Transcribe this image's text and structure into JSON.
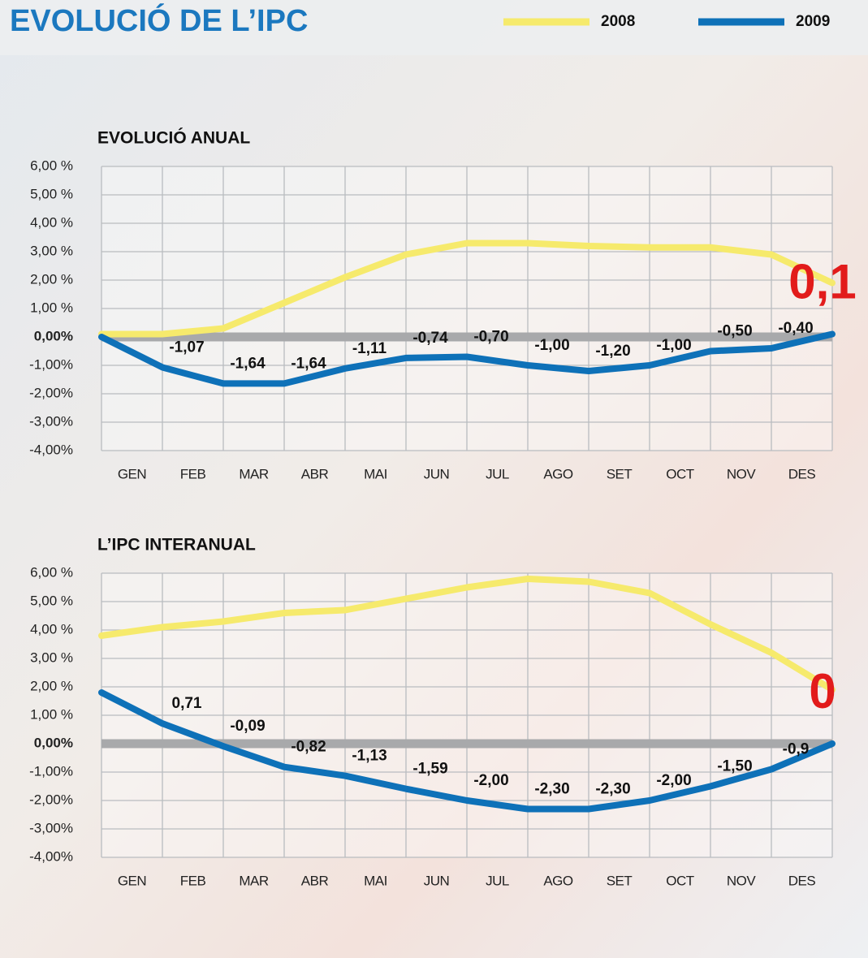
{
  "title": "EVOLUCIÓ DE L’IPC",
  "chart_data": [
    {
      "type": "line",
      "title": "EVOLUCIÓ ANUAL",
      "categories": [
        null,
        "GEN",
        "FEB",
        "MAR",
        "ABR",
        "MAI",
        "JUN",
        "JUL",
        "AGO",
        "SET",
        "OCT",
        "NOV",
        "DES"
      ],
      "series": [
        {
          "name": "2008",
          "color": "#f6ea6c",
          "values": [
            0.1,
            0.1,
            0.3,
            1.2,
            2.1,
            2.9,
            3.3,
            3.3,
            3.2,
            3.15,
            3.15,
            2.9,
            1.9
          ]
        },
        {
          "name": "2009",
          "color": "#0e71b8",
          "values": [
            0,
            -1.07,
            -1.64,
            -1.64,
            -1.11,
            -0.74,
            -0.7,
            -1.0,
            -1.2,
            -1.0,
            -0.5,
            -0.4,
            0.1
          ],
          "value_labels": [
            null,
            "-1,07",
            "-1,64",
            "-1,64",
            "-1,11",
            "-0,74",
            "-0,70",
            "-1,00",
            "-1,20",
            "-1,00",
            "-0,50",
            "-0,40",
            "0,1"
          ]
        }
      ],
      "ylim": [
        -4,
        6
      ],
      "yticks": [
        {
          "value": 6,
          "label": "6,00 %"
        },
        {
          "value": 5,
          "label": "5,00 %"
        },
        {
          "value": 4,
          "label": "4,00 %"
        },
        {
          "value": 3,
          "label": "3,00 %"
        },
        {
          "value": 2,
          "label": "2,00 %"
        },
        {
          "value": 1,
          "label": "1,00 %"
        },
        {
          "value": 0,
          "label": "0,00%"
        },
        {
          "value": -1,
          "label": "-1,00%"
        },
        {
          "value": -2,
          "label": "-2,00%"
        },
        {
          "value": -3,
          "label": "-3,00%"
        },
        {
          "value": -4,
          "label": "-4,00%"
        }
      ],
      "grid": true
    },
    {
      "type": "line",
      "title": "L’IPC INTERANUAL",
      "categories": [
        null,
        "GEN",
        "FEB",
        "MAR",
        "ABR",
        "MAI",
        "JUN",
        "JUL",
        "AGO",
        "SET",
        "OCT",
        "NOV",
        "DES"
      ],
      "series": [
        {
          "name": "2008",
          "color": "#f6ea6c",
          "values": [
            3.8,
            4.1,
            4.3,
            4.6,
            4.7,
            5.1,
            5.5,
            5.8,
            5.7,
            5.3,
            4.2,
            3.2,
            1.9
          ]
        },
        {
          "name": "2009",
          "color": "#0e71b8",
          "values": [
            1.8,
            0.71,
            -0.09,
            -0.82,
            -1.13,
            -1.59,
            -2.0,
            -2.3,
            -2.3,
            -2.0,
            -1.5,
            -0.9,
            0
          ],
          "value_labels": [
            null,
            "0,71",
            "-0,09",
            "-0,82",
            "-1,13",
            "-1,59",
            "-2,00",
            "-2,30",
            "-2,30",
            "-2,00",
            "-1,50",
            "-0,9",
            "0"
          ]
        }
      ],
      "ylim": [
        -4,
        6
      ],
      "yticks": [
        {
          "value": 6,
          "label": "6,00 %"
        },
        {
          "value": 5,
          "label": "5,00 %"
        },
        {
          "value": 4,
          "label": "4,00 %"
        },
        {
          "value": 3,
          "label": "3,00 %"
        },
        {
          "value": 2,
          "label": "2,00 %"
        },
        {
          "value": 1,
          "label": "1,00 %"
        },
        {
          "value": 0,
          "label": "0,00%"
        },
        {
          "value": -1,
          "label": "-1,00%"
        },
        {
          "value": -2,
          "label": "-2,00%"
        },
        {
          "value": -3,
          "label": "-3,00%"
        },
        {
          "value": -4,
          "label": "-4,00%"
        }
      ],
      "grid": true
    }
  ]
}
